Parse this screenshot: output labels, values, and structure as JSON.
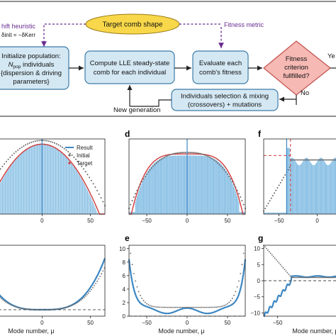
{
  "flowchart": {
    "target_comb_shape": "Target comb shape",
    "fitness_metric": "Fitness metric",
    "shift_heuristic": "hift heuristic",
    "shift_formula": "δinit = −δKerr",
    "initialize": [
      "Initialize population:",
      "N",
      "pop",
      " individuals",
      "{dispersion & driving",
      "parameters}"
    ],
    "compute": [
      "Compute LLE steady-state",
      "comb for each individual"
    ],
    "evaluate": [
      "Evaluate each",
      "comb's fitness"
    ],
    "fitness_criterion": [
      "Fitness",
      "criterion",
      "fullfilled?"
    ],
    "yes_label": "Ye",
    "no_label": "No",
    "selection": [
      "Individuals selection & mixing",
      "(crossovers) + mutations"
    ],
    "new_generation": "New generation"
  },
  "panels": {
    "letters": [
      "d",
      "f",
      "e",
      "g"
    ],
    "xlabel": "Mode number, μ",
    "legend": [
      "Result",
      "Initial",
      "Target"
    ]
  },
  "colors": {
    "box_fill": "#d4e8f3",
    "box_stroke": "#3e7ca8",
    "target_fill": "#f8d84a",
    "diamond_fill": "#f6b9b4",
    "purple": "#6a2c91",
    "bar_blue": "#8fc3e6",
    "line_blue": "#3d87c2",
    "red": "#d23a3a",
    "grey": "#666666"
  },
  "chart_data": [
    {
      "type": "bar",
      "panel": "c",
      "title": "",
      "xlabel": "",
      "ylabel": "",
      "xticks": [
        0,
        50
      ],
      "series": [
        {
          "name": "Result",
          "style": "bars"
        },
        {
          "name": "Initial",
          "style": "grey dots"
        },
        {
          "name": "Target",
          "style": "red dashes"
        }
      ]
    },
    {
      "type": "bar",
      "panel": "d",
      "title": "",
      "xlabel": "",
      "ylabel": "",
      "xticks": [
        -50,
        0,
        50
      ]
    },
    {
      "type": "bar",
      "panel": "f",
      "title": "",
      "xlabel": "",
      "ylabel": "",
      "xticks": [
        -50,
        0
      ]
    },
    {
      "type": "line",
      "panel": "b-lower",
      "xlabel": "Mode number, μ",
      "xticks": [
        0,
        50
      ]
    },
    {
      "type": "line",
      "panel": "e",
      "xlabel": "Mode number, μ",
      "xticks": [
        -50,
        0,
        50
      ],
      "yticks": [
        0,
        2,
        4,
        6,
        8,
        10
      ],
      "ylim": [
        0,
        10
      ]
    },
    {
      "type": "line",
      "panel": "g",
      "xlabel": "Mode number, μ",
      "xticks": [
        -50
      ],
      "yticks": [
        -10,
        -5,
        0,
        5,
        10
      ],
      "ylim": [
        -10,
        10
      ]
    }
  ]
}
